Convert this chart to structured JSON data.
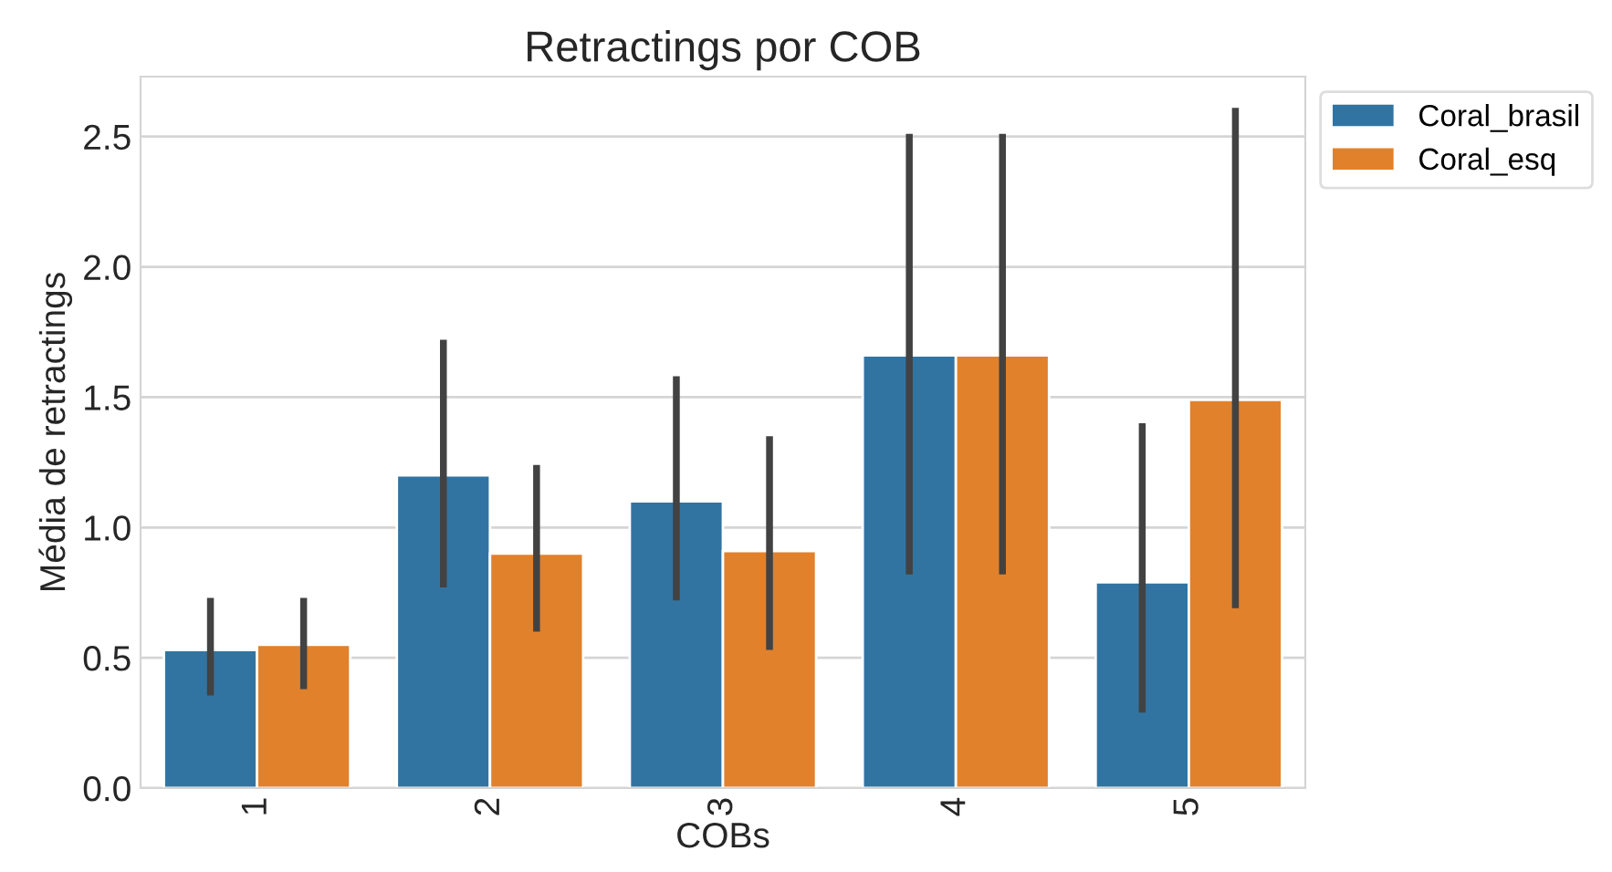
{
  "chart_data": {
    "type": "bar",
    "title": "Retractings por COB",
    "xlabel": "COBs",
    "ylabel": "Média de retractings",
    "categories": [
      "1",
      "2",
      "3",
      "4",
      "5"
    ],
    "series": [
      {
        "name": "Coral_brasil",
        "color": "#3274a1",
        "values": [
          0.53,
          1.2,
          1.1,
          1.66,
          0.79
        ],
        "errors": [
          [
            0.355,
            0.73
          ],
          [
            0.77,
            1.72
          ],
          [
            0.72,
            1.58
          ],
          [
            0.82,
            2.51
          ],
          [
            0.29,
            1.4
          ]
        ]
      },
      {
        "name": "Coral_esq",
        "color": "#e1812c",
        "values": [
          0.55,
          0.9,
          0.91,
          1.66,
          1.49
        ],
        "errors": [
          [
            0.38,
            0.73
          ],
          [
            0.6,
            1.24
          ],
          [
            0.53,
            1.35
          ],
          [
            0.82,
            2.51
          ],
          [
            0.69,
            2.61
          ]
        ]
      }
    ],
    "ylim": [
      0,
      2.73
    ],
    "yticks": [
      {
        "value": 0,
        "label": "0.0"
      },
      0.5,
      {
        "value": 1,
        "label": "1.0"
      },
      1.5,
      {
        "value": 2,
        "label": "2.0"
      },
      2.5
    ],
    "grid": "y",
    "legend": "top right"
  }
}
